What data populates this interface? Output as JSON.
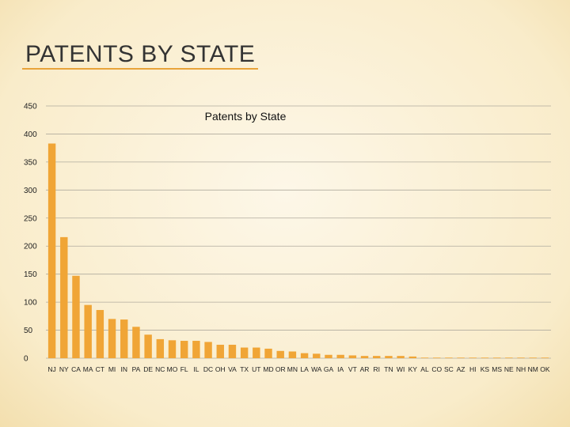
{
  "slide": {
    "title": "PATENTS BY STATE"
  },
  "colors": {
    "bar": "#f0a536",
    "grid": "#b0ab9e",
    "title_rule": "#e8a33a"
  },
  "chart_data": {
    "type": "bar",
    "title": "Patents by State",
    "xlabel": "",
    "ylabel": "",
    "ylim": [
      0,
      450
    ],
    "yticks": [
      0,
      50,
      100,
      150,
      200,
      250,
      300,
      350,
      400,
      450
    ],
    "grid": true,
    "legend": "none",
    "categories": [
      "NJ",
      "NY",
      "CA",
      "MA",
      "CT",
      "MI",
      "IN",
      "PA",
      "DE",
      "NC",
      "MO",
      "FL",
      "IL",
      "DC",
      "OH",
      "VA",
      "TX",
      "UT",
      "MD",
      "OR",
      "MN",
      "LA",
      "WA",
      "GA",
      "IA",
      "VT",
      "AR",
      "RI",
      "TN",
      "WI",
      "KY",
      "AL",
      "CO",
      "SC",
      "AZ",
      "HI",
      "KS",
      "MS",
      "NE",
      "NH",
      "NM",
      "OK"
    ],
    "values": [
      383,
      216,
      147,
      95,
      86,
      70,
      69,
      56,
      42,
      34,
      32,
      31,
      31,
      29,
      24,
      24,
      19,
      19,
      17,
      13,
      12,
      9,
      8,
      6,
      6,
      5,
      4,
      4,
      4,
      4,
      3,
      1,
      1,
      1,
      1,
      1,
      1,
      1,
      1,
      1,
      1,
      1
    ]
  }
}
